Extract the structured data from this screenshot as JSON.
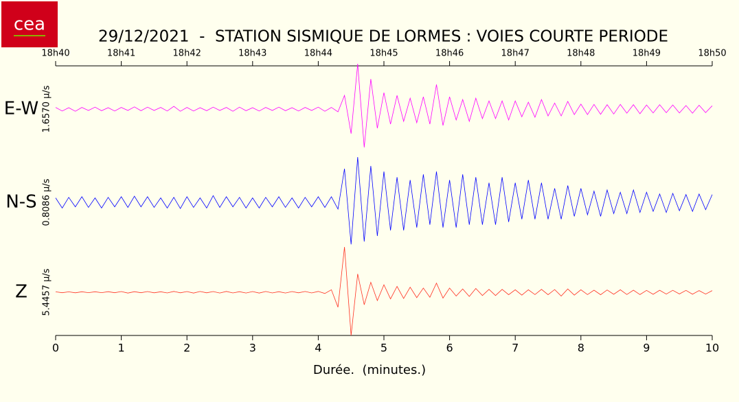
{
  "logo_text": "cea",
  "chart_data": {
    "type": "line",
    "title": "29/12/2021  -  STATION SISMIQUE DE LORMES : VOIES COURTE PERIODE",
    "xlabel": "Durée.  (minutes.)",
    "x": [
      0,
      0.1,
      0.2,
      0.3,
      0.4,
      0.5,
      0.6,
      0.7,
      0.8,
      0.9,
      1,
      1.1,
      1.2,
      1.3,
      1.4,
      1.5,
      1.6,
      1.7,
      1.8,
      1.9,
      2,
      2.1,
      2.2,
      2.3,
      2.4,
      2.5,
      2.6,
      2.7,
      2.8,
      2.9,
      3,
      3.1,
      3.2,
      3.3,
      3.4,
      3.5,
      3.6,
      3.7,
      3.8,
      3.9,
      4,
      4.1,
      4.2,
      4.3,
      4.4,
      4.5,
      4.6,
      4.7,
      4.8,
      4.9,
      5,
      5.1,
      5.2,
      5.3,
      5.4,
      5.5,
      5.6,
      5.7,
      5.8,
      5.9,
      6,
      6.1,
      6.2,
      6.3,
      6.4,
      6.5,
      6.6,
      6.7,
      6.8,
      6.9,
      7,
      7.1,
      7.2,
      7.3,
      7.4,
      7.5,
      7.6,
      7.7,
      7.8,
      7.9,
      8,
      8.1,
      8.2,
      8.3,
      8.4,
      8.5,
      8.6,
      8.7,
      8.8,
      8.9,
      9,
      9.1,
      9.2,
      9.3,
      9.4,
      9.5,
      9.6,
      9.7,
      9.8,
      9.9,
      10
    ],
    "xlim": [
      0,
      10
    ],
    "xticks": [
      0,
      1,
      2,
      3,
      4,
      5,
      6,
      7,
      8,
      9,
      10
    ],
    "x2ticks": [
      {
        "value": 0,
        "label": "18h40"
      },
      {
        "value": 1,
        "label": "18h41"
      },
      {
        "value": 2,
        "label": "18h42"
      },
      {
        "value": 3,
        "label": "18h43"
      },
      {
        "value": 4,
        "label": "18h44"
      },
      {
        "value": 5,
        "label": "18h45"
      },
      {
        "value": 6,
        "label": "18h46"
      },
      {
        "value": 7,
        "label": "18h47"
      },
      {
        "value": 8,
        "label": "18h48"
      },
      {
        "value": 9,
        "label": "18h49"
      },
      {
        "value": 10,
        "label": "18h50"
      }
    ],
    "series": [
      {
        "name": "E-W",
        "scale_label": "1.6570 µ/s",
        "color": "#ff00ff",
        "ylim": [
          -1.657,
          1.657
        ],
        "values": [
          0.06,
          -0.07,
          0.05,
          -0.08,
          0.06,
          -0.05,
          0.07,
          -0.06,
          0.05,
          -0.07,
          0.06,
          -0.05,
          0.08,
          -0.06,
          0.07,
          -0.05,
          0.06,
          -0.07,
          0.1,
          -0.08,
          0.06,
          -0.07,
          0.05,
          -0.06,
          0.07,
          -0.05,
          0.06,
          -0.08,
          0.07,
          -0.06,
          0.05,
          -0.07,
          0.06,
          -0.05,
          0.07,
          -0.06,
          0.05,
          -0.07,
          0.06,
          -0.05,
          0.07,
          -0.08,
          0.06,
          -0.1,
          0.5,
          -0.9,
          1.657,
          -1.4,
          1.1,
          -0.7,
          0.6,
          -0.55,
          0.5,
          -0.45,
          0.4,
          -0.5,
          0.45,
          -0.55,
          0.9,
          -0.6,
          0.45,
          -0.4,
          0.35,
          -0.45,
          0.4,
          -0.35,
          0.3,
          -0.35,
          0.3,
          -0.4,
          0.3,
          -0.28,
          0.25,
          -0.3,
          0.35,
          -0.25,
          0.22,
          -0.25,
          0.28,
          -0.2,
          0.18,
          -0.2,
          0.17,
          -0.19,
          0.16,
          -0.18,
          0.17,
          -0.15,
          0.16,
          -0.17,
          0.15,
          -0.14,
          0.16,
          -0.13,
          0.15,
          -0.14,
          0.13,
          -0.15,
          0.14,
          -0.13,
          0.12
        ]
      },
      {
        "name": "N-S",
        "scale_label": "0.8086 µ/s",
        "color": "#0000ff",
        "ylim": [
          -0.8086,
          0.8086
        ],
        "values": [
          0.08,
          -0.1,
          0.09,
          -0.08,
          0.1,
          -0.09,
          0.08,
          -0.1,
          0.09,
          -0.08,
          0.1,
          -0.09,
          0.11,
          -0.08,
          0.1,
          -0.09,
          0.08,
          -0.1,
          0.09,
          -0.11,
          0.1,
          -0.09,
          0.08,
          -0.1,
          0.12,
          -0.09,
          0.1,
          -0.08,
          0.09,
          -0.1,
          0.08,
          -0.1,
          0.09,
          -0.08,
          0.1,
          -0.09,
          0.08,
          -0.1,
          0.09,
          -0.08,
          0.1,
          -0.09,
          0.1,
          -0.12,
          0.6,
          -0.75,
          0.8086,
          -0.7,
          0.65,
          -0.6,
          0.55,
          -0.5,
          0.45,
          -0.5,
          0.4,
          -0.45,
          0.5,
          -0.4,
          0.55,
          -0.45,
          0.4,
          -0.45,
          0.5,
          -0.4,
          0.45,
          -0.4,
          0.35,
          -0.4,
          0.45,
          -0.35,
          0.35,
          -0.3,
          0.4,
          -0.3,
          0.35,
          -0.3,
          0.25,
          -0.3,
          0.3,
          -0.25,
          0.25,
          -0.22,
          0.2,
          -0.25,
          0.22,
          -0.2,
          0.18,
          -0.2,
          0.22,
          -0.18,
          0.18,
          -0.16,
          0.15,
          -0.18,
          0.16,
          -0.15,
          0.14,
          -0.16,
          0.15,
          -0.13,
          0.14
        ]
      },
      {
        "name": "Z",
        "scale_label": "5.4457 µ/s",
        "color": "#ff3020",
        "ylim": [
          -5.4457,
          5.4457
        ],
        "values": [
          0.05,
          -0.06,
          0.05,
          -0.07,
          0.06,
          -0.05,
          0.06,
          -0.05,
          0.07,
          -0.06,
          0.08,
          -0.1,
          0.07,
          -0.06,
          0.08,
          -0.07,
          0.06,
          -0.08,
          0.1,
          -0.07,
          0.08,
          -0.1,
          0.09,
          -0.07,
          0.08,
          -0.09,
          0.1,
          -0.08,
          0.07,
          -0.09,
          0.08,
          -0.1,
          0.09,
          -0.08,
          0.07,
          -0.09,
          0.08,
          -0.07,
          0.09,
          -0.08,
          0.1,
          -0.15,
          0.3,
          -1.8,
          5.4457,
          -5.2,
          2.2,
          -1.5,
          1.2,
          -1.0,
          0.9,
          -0.8,
          0.7,
          -0.75,
          0.6,
          -0.65,
          0.5,
          -0.6,
          1.1,
          -0.7,
          0.5,
          -0.45,
          0.4,
          -0.5,
          0.45,
          -0.4,
          0.35,
          -0.4,
          0.35,
          -0.3,
          0.3,
          -0.35,
          0.3,
          -0.28,
          0.35,
          -0.3,
          0.32,
          -0.45,
          0.4,
          -0.35,
          0.3,
          -0.28,
          0.25,
          -0.3,
          0.27,
          -0.25,
          0.3,
          -0.27,
          0.25,
          -0.28,
          0.22,
          -0.25,
          0.24,
          -0.22,
          0.23,
          -0.21,
          0.22,
          -0.24,
          0.2,
          -0.22,
          0.2
        ]
      }
    ]
  }
}
